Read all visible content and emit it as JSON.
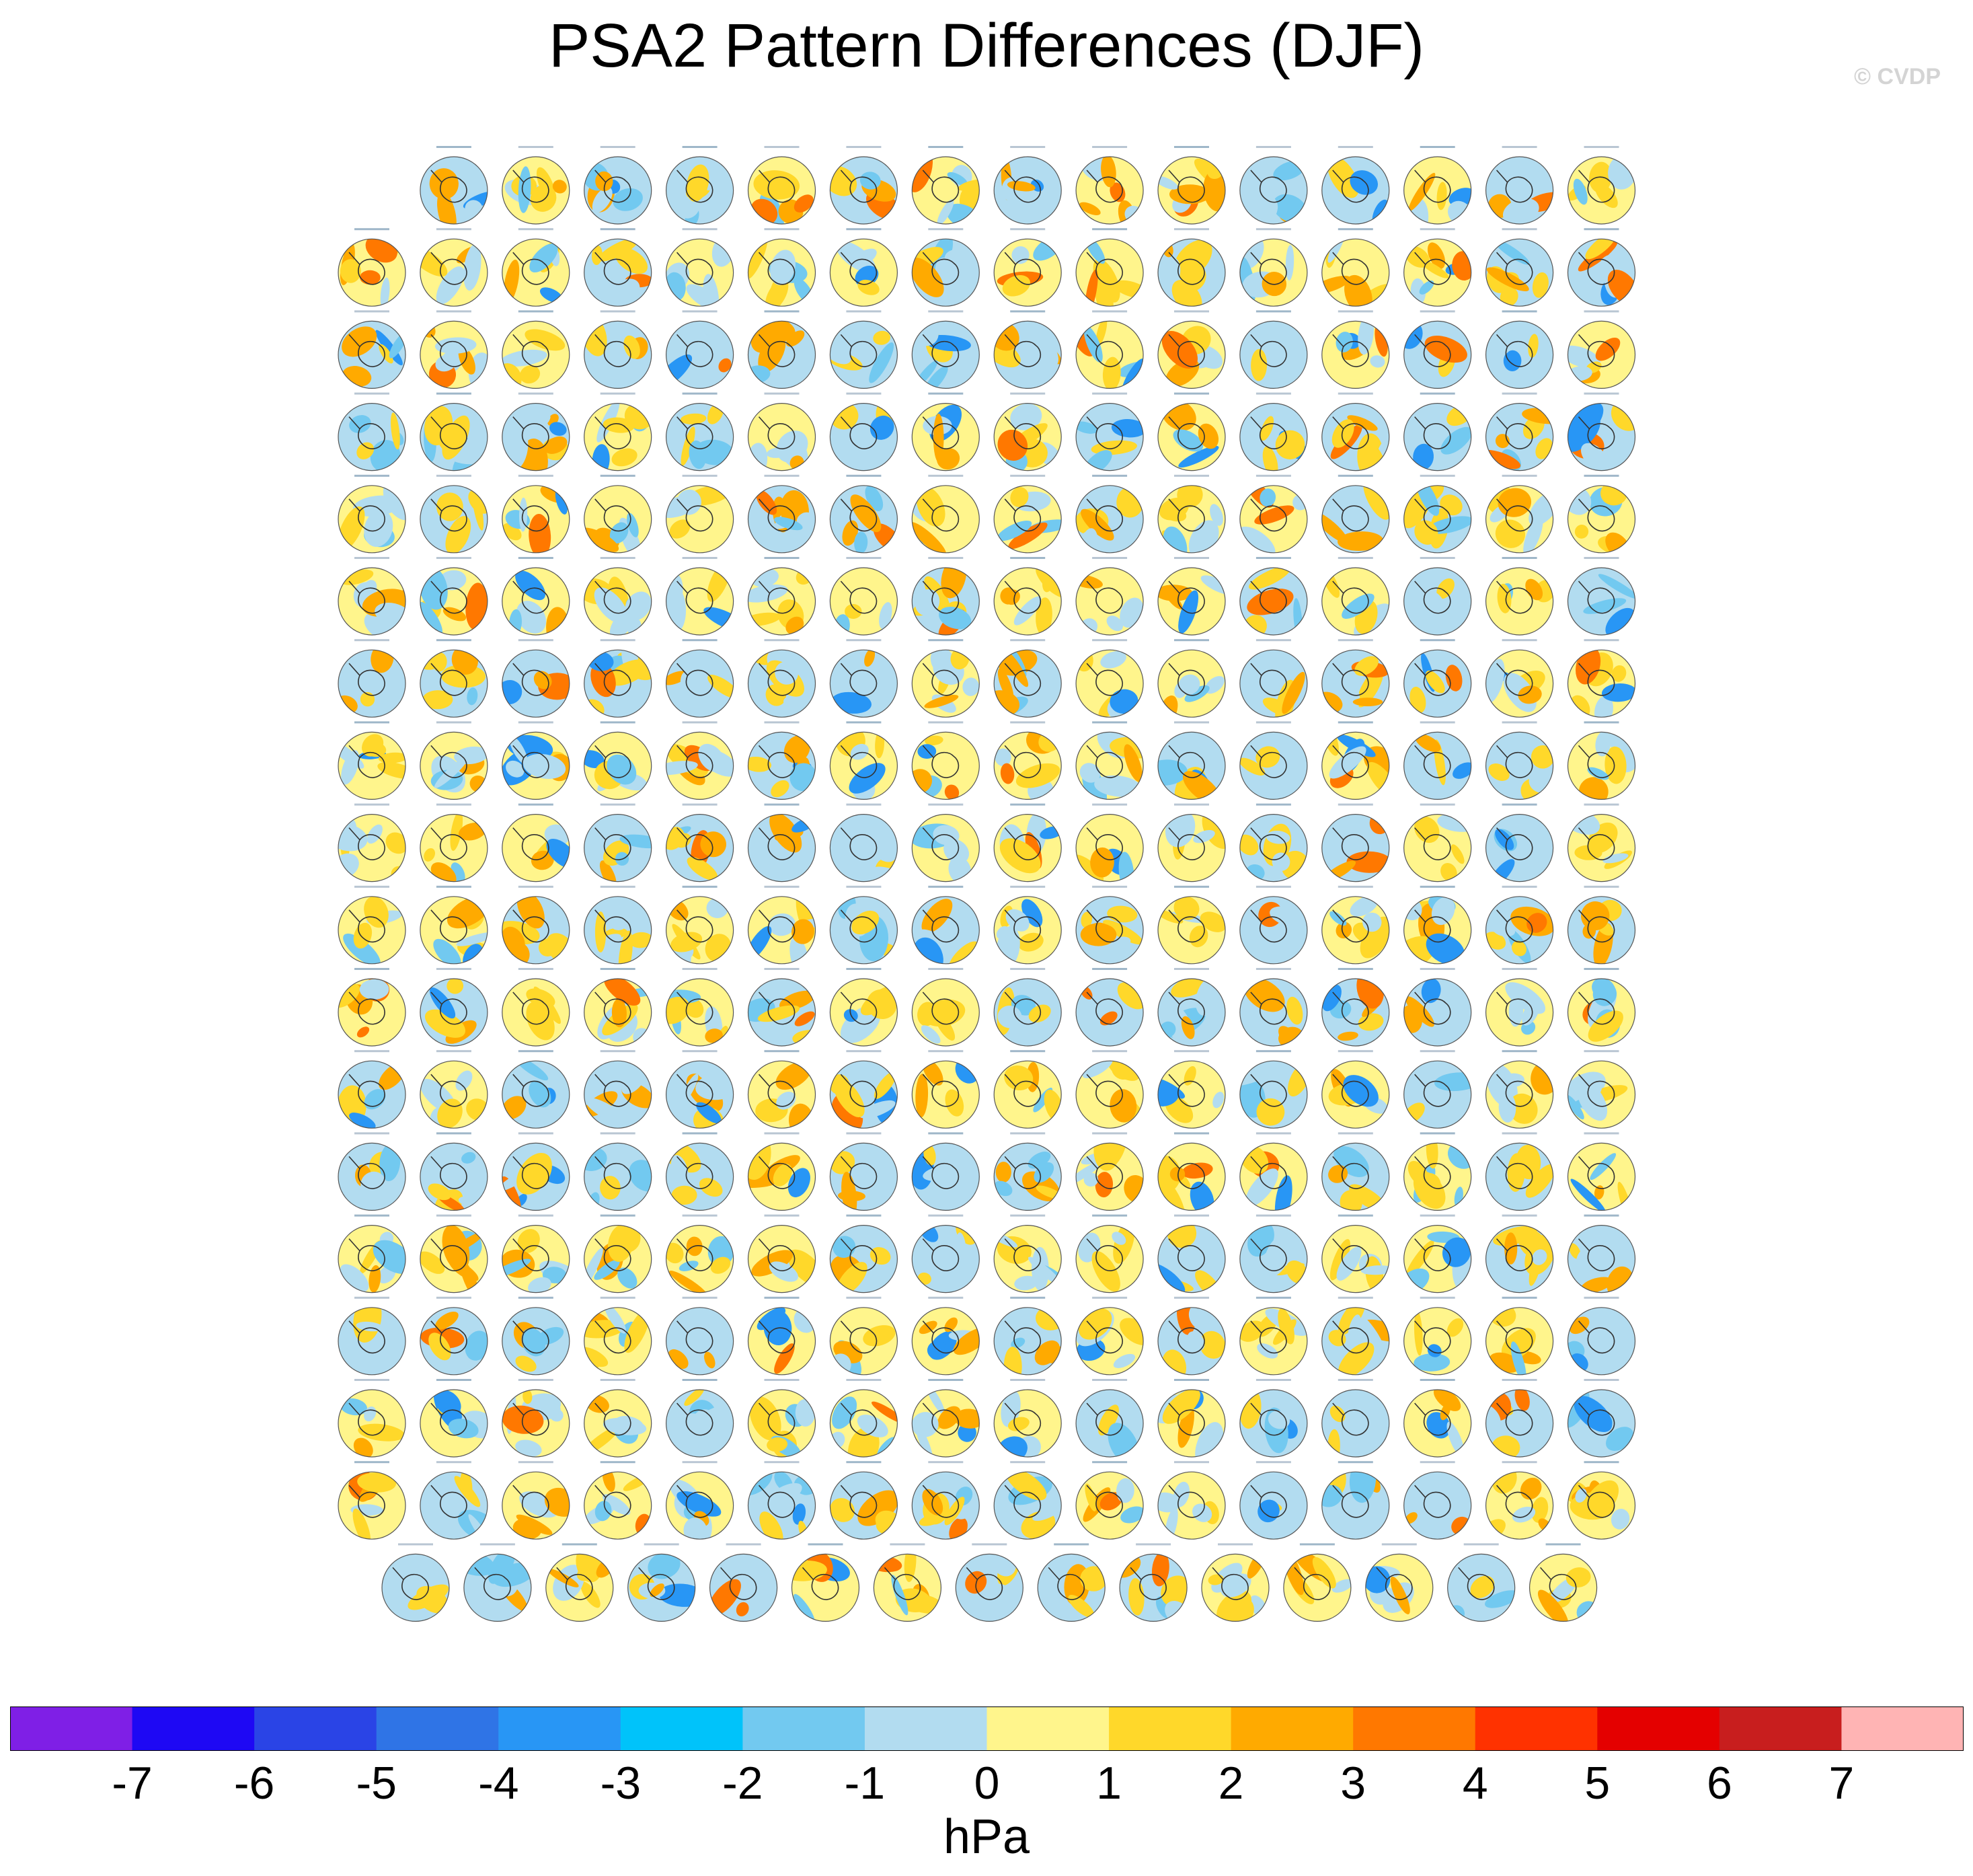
{
  "title": "PSA2 Pattern Differences (DJF)",
  "watermark": "© CVDP",
  "chart_data": {
    "type": "heatmap",
    "title": "PSA2 Pattern Differences (DJF)",
    "description_grid": "panel matrix of polar-stereographic Southern Hemisphere maps",
    "rows": [
      {
        "row": 1,
        "panels": 15
      },
      {
        "row": 2,
        "panels": 16
      },
      {
        "row": 3,
        "panels": 16
      },
      {
        "row": 4,
        "panels": 16
      },
      {
        "row": 5,
        "panels": 16
      },
      {
        "row": 6,
        "panels": 16
      },
      {
        "row": 7,
        "panels": 16
      },
      {
        "row": 8,
        "panels": 16
      },
      {
        "row": 9,
        "panels": 16
      },
      {
        "row": 10,
        "panels": 16
      },
      {
        "row": 11,
        "panels": 16
      },
      {
        "row": 12,
        "panels": 16
      },
      {
        "row": 13,
        "panels": 16
      },
      {
        "row": 14,
        "panels": 16
      },
      {
        "row": 15,
        "panels": 16
      },
      {
        "row": 16,
        "panels": 16
      },
      {
        "row": 17,
        "panels": 16
      },
      {
        "row": 18,
        "panels": 15
      }
    ],
    "total_panels": 286,
    "colorbar": {
      "units": "hPa",
      "ticks": [
        "-7",
        "-6",
        "-5",
        "-4",
        "-3",
        "-2",
        "-1",
        "0",
        "1",
        "2",
        "3",
        "4",
        "5",
        "6",
        "7"
      ],
      "colors": [
        "#7f1fe6",
        "#1e08f4",
        "#2a44e6",
        "#2f74e6",
        "#2896f5",
        "#00c3fa",
        "#72c9f0",
        "#b2dcf0",
        "#fff58c",
        "#ffd82a",
        "#ffaa00",
        "#ff7800",
        "#ff3200",
        "#e40000",
        "#c81e1e",
        "#ffb4b4"
      ]
    }
  },
  "colorbar_units": "hPa"
}
